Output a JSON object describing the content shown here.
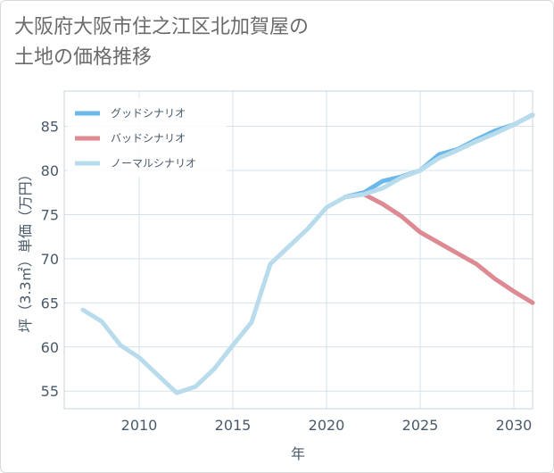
{
  "title_lines": [
    "大阪府大阪市住之江区北加賀屋の",
    "土地の価格推移"
  ],
  "chart_data": {
    "type": "line",
    "xlabel": "年",
    "ylabel": "坪（3.3㎡）単価（万円）",
    "xlim": [
      2006,
      2031
    ],
    "ylim": [
      53,
      89
    ],
    "x_ticks": [
      2010,
      2015,
      2020,
      2025,
      2030
    ],
    "y_ticks": [
      55,
      60,
      65,
      70,
      75,
      80,
      85
    ],
    "grid": true,
    "legend_position": "top-left",
    "series": [
      {
        "name": "グッドシナリオ",
        "color": "#6cb8ea",
        "x": [
          2021,
          2022,
          2023,
          2024,
          2025,
          2026,
          2027,
          2028,
          2029,
          2030,
          2031
        ],
        "y": [
          77.0,
          77.5,
          78.8,
          79.3,
          80.0,
          81.8,
          82.4,
          83.5,
          84.5,
          85.2,
          86.3
        ]
      },
      {
        "name": "バッドシナリオ",
        "color": "#dd8a93",
        "x": [
          2021,
          2022,
          2023,
          2024,
          2025,
          2026,
          2027,
          2028,
          2029,
          2030,
          2031
        ],
        "y": [
          77.0,
          77.3,
          76.2,
          74.8,
          73.0,
          71.8,
          70.6,
          69.4,
          67.7,
          66.3,
          65.0
        ]
      },
      {
        "name": "ノーマルシナリオ",
        "color": "#b9dcec",
        "x": [
          2007,
          2008,
          2009,
          2010,
          2011,
          2012,
          2013,
          2014,
          2015,
          2016,
          2017,
          2018,
          2019,
          2020,
          2021,
          2022,
          2023,
          2024,
          2025,
          2026,
          2027,
          2028,
          2029,
          2030,
          2031
        ],
        "y": [
          64.2,
          62.9,
          60.2,
          58.8,
          56.8,
          54.8,
          55.5,
          57.5,
          60.2,
          62.8,
          69.4,
          71.4,
          73.4,
          75.8,
          77.0,
          77.3,
          78.0,
          79.2,
          80.0,
          81.4,
          82.3,
          83.3,
          84.2,
          85.2,
          86.3
        ]
      }
    ]
  }
}
